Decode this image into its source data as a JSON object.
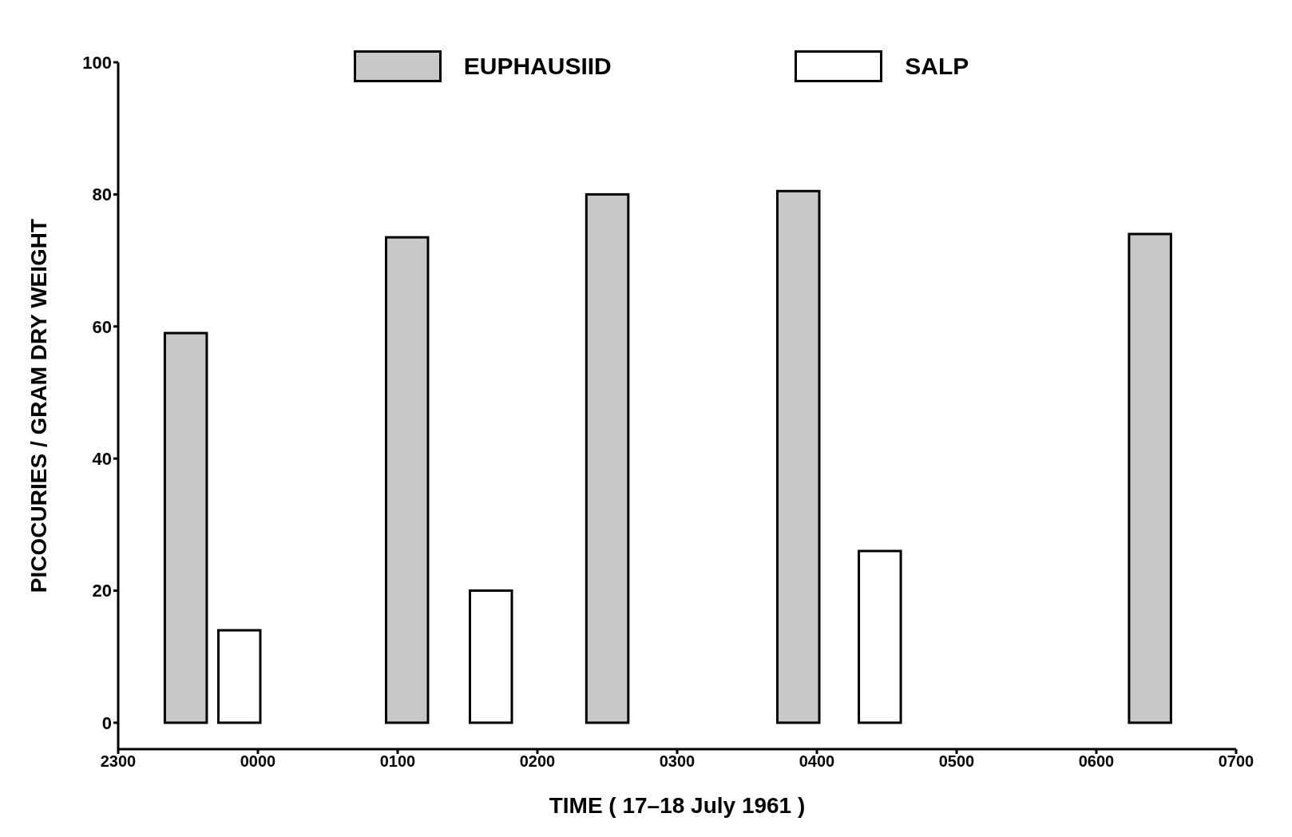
{
  "chart_data": {
    "type": "bar",
    "xlabel": "TIME ( 17–18 July 1961 )",
    "ylabel": "PICOCURIES / GRAM DRY WEIGHT",
    "xlim": [
      "1961-07-17T23:00",
      "1961-07-18T07:00"
    ],
    "xticks": [
      {
        "value": "1961-07-17T23:00",
        "label": "2300"
      },
      {
        "value": "1961-07-18T00:00",
        "label": "0000"
      },
      {
        "value": "1961-07-18T01:00",
        "label": "0100"
      },
      {
        "value": "1961-07-18T02:00",
        "label": "0200"
      },
      {
        "value": "1961-07-18T03:00",
        "label": "0300"
      },
      {
        "value": "1961-07-18T04:00",
        "label": "0400"
      },
      {
        "value": "1961-07-18T05:00",
        "label": "0500"
      },
      {
        "value": "1961-07-18T06:00",
        "label": "0600"
      },
      {
        "value": "1961-07-18T07:00",
        "label": "0700"
      }
    ],
    "ylim": [
      -4,
      100
    ],
    "yticks": [
      0,
      20,
      40,
      60,
      80,
      100
    ],
    "grid": false,
    "legend": "top",
    "series": [
      {
        "name": "EUPHAUSIID",
        "color": "#c8c8c8",
        "x": [
          "1961-07-17T23:29",
          "1961-07-18T01:04",
          "1961-07-18T02:30",
          "1961-07-18T03:52",
          "1961-07-18T06:23"
        ],
        "values": [
          59,
          73.5,
          80,
          80.5,
          74
        ]
      },
      {
        "name": "SALP",
        "color": "#ffffff",
        "x": [
          "1961-07-17T23:52",
          "1961-07-18T01:40",
          "1961-07-18T02:58",
          "1961-07-18T04:27",
          "1961-07-18T06:43"
        ],
        "values": [
          14,
          20,
          0,
          26,
          0
        ]
      }
    ]
  }
}
